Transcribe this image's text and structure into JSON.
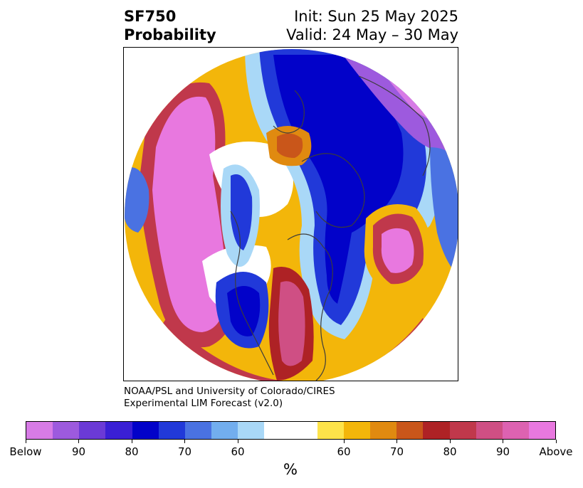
{
  "title": {
    "variable": "SF750",
    "subtitle": "Probability",
    "init": "Init: Sun 25 May 2025",
    "valid": "Valid: 24 May – 30 May"
  },
  "credit": {
    "line1": "NOAA/PSL and University of Colorado/CIRES",
    "line2": "Experimental LIM Forecast (v2.0)"
  },
  "colorbar": {
    "unit": "%",
    "colors": [
      "#d77be6",
      "#9d5ade",
      "#6b3ad6",
      "#3a1fd5",
      "#0202c9",
      "#2139d9",
      "#4a72e2",
      "#72aeee",
      "#a9d8f7",
      "#ffffff",
      "#ffffff",
      "#fde34a",
      "#f3b60a",
      "#e08a10",
      "#c9561a",
      "#ae2225",
      "#c0384b",
      "#cf4f84",
      "#dd62b1",
      "#e878df"
    ],
    "labels": [
      "Below",
      "90",
      "80",
      "70",
      "60",
      "60",
      "70",
      "80",
      "90",
      "Above"
    ]
  },
  "map": {
    "projection": "north-polar-stereographic",
    "palette": {
      "above_high": "#e878df",
      "above_mid": "#c0384b",
      "above_low": "#f3b60a",
      "neutral": "#ffffff",
      "below_low": "#a9d8f7",
      "below_mid": "#2139d9",
      "below_high": "#0202c9",
      "below_extreme": "#9d5ade",
      "coastline": "#3c3c3c"
    }
  }
}
